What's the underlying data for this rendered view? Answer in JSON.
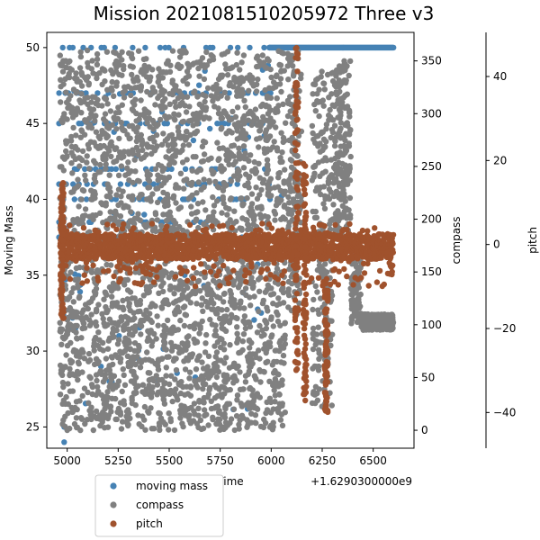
{
  "chart_data": {
    "type": "scatter",
    "title": "Mission 2021081510205972 Three v3",
    "xlabel": "Time",
    "x_offset_label": "+1.6290300000e9",
    "xlim": [
      4900,
      6700
    ],
    "xticks": [
      5000,
      5250,
      5500,
      5750,
      6000,
      6250,
      6500
    ],
    "axes": [
      {
        "name": "moving-mass",
        "ylabel": "Moving Mass",
        "ylim": [
          23.6,
          51.0
        ],
        "ticks": [
          25,
          30,
          35,
          40,
          45,
          50
        ],
        "side": "left"
      },
      {
        "name": "compass",
        "ylabel": "compass",
        "ylim": [
          -17,
          377
        ],
        "ticks": [
          0,
          50,
          100,
          150,
          200,
          250,
          300,
          350
        ],
        "side": "right"
      },
      {
        "name": "pitch",
        "ylabel": "pitch",
        "ylim": [
          -48.5,
          50.5
        ],
        "ticks": [
          -40,
          -20,
          0,
          20,
          40
        ],
        "side": "right-outer"
      }
    ],
    "series": [
      {
        "name": "moving mass",
        "color": "#4682b4",
        "axis": 0,
        "bands": [
          50.0,
          47.0,
          45.0,
          42.0,
          41.0,
          40.0,
          38.5,
          37.5
        ],
        "x_range": [
          4960,
          6600
        ],
        "tail": {
          "x": [
            5990,
            6600
          ],
          "y": 50.0
        },
        "points": [
          [
            4985,
            25.0
          ],
          [
            4985,
            24.0
          ],
          [
            5020,
            37.5
          ],
          [
            5500,
            38.0
          ],
          [
            6050,
            40.2
          ]
        ]
      },
      {
        "name": "compass",
        "color": "#808080",
        "axis": 1,
        "x_range": [
          4960,
          6600
        ],
        "y_range": [
          0,
          360
        ],
        "late_segments": [
          {
            "x": [
              6080,
              6150
            ],
            "y": [
              100,
              360
            ]
          },
          {
            "x": [
              6200,
              6300
            ],
            "y": [
              20,
              340
            ]
          },
          {
            "x": [
              6300,
              6390
            ],
            "y": [
              180,
              350
            ]
          },
          {
            "x": [
              6390,
              6440
            ],
            "y": [
              100,
              170
            ]
          },
          {
            "x": [
              6440,
              6600
            ],
            "y": [
              95,
              110
            ]
          }
        ]
      },
      {
        "name": "pitch",
        "color": "#a0522d",
        "axis": 2,
        "x_range": [
          4960,
          6600
        ],
        "center": 0,
        "spread": [
          -10,
          5
        ],
        "spikes": [
          {
            "x": 4975,
            "y": [
              -18,
              15
            ]
          },
          {
            "x": 6125,
            "y": [
              -30,
              48
            ]
          },
          {
            "x": 6165,
            "y": [
              -40,
              20
            ]
          },
          {
            "x": 6270,
            "y": [
              -40,
              -8
            ]
          }
        ]
      }
    ],
    "legend": {
      "location": "bottom-left",
      "entries": [
        "moving mass",
        "compass",
        "pitch"
      ]
    }
  }
}
